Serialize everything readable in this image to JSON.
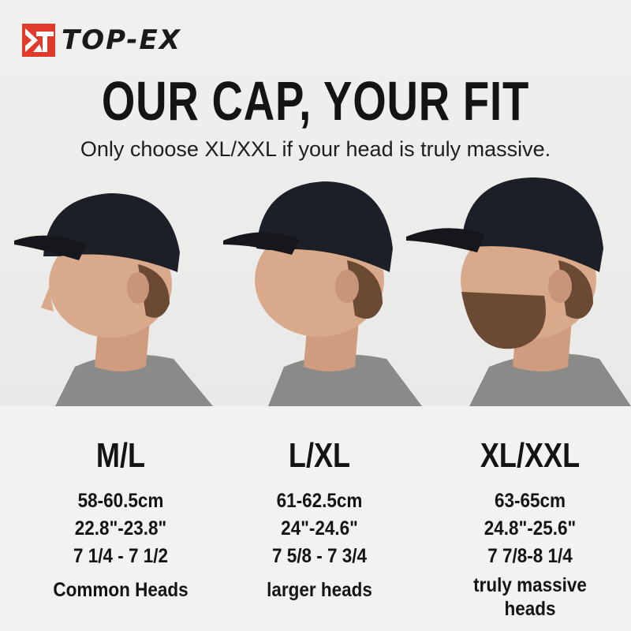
{
  "brand": {
    "name": "TOP-EX",
    "logo_color": "#e03a2a"
  },
  "header": {
    "title": "OUR CAP, YOUR FIT",
    "subtitle": "Only choose XL/XXL if your head is truly massive."
  },
  "sizes": [
    {
      "label": "M/L",
      "cm": "58-60.5cm",
      "inches": "22.8\"-23.8\"",
      "hat_size": "7 1/4 - 7 1/2",
      "description": "Common Heads"
    },
    {
      "label": "L/XL",
      "cm": "61-62.5cm",
      "inches": "24\"-24.6\"",
      "hat_size": "7 5/8 - 7 3/4",
      "description": "larger heads"
    },
    {
      "label": "XL/XXL",
      "cm": "63-65cm",
      "inches": "24.8\"-25.6\"",
      "hat_size": "7 7/8-8 1/4",
      "description": "truly massive heads"
    }
  ],
  "colors": {
    "cap": "#1c1f26",
    "shirt": "#8a8a88",
    "skin": "#d9a98c",
    "beard": "#6b4a34"
  }
}
